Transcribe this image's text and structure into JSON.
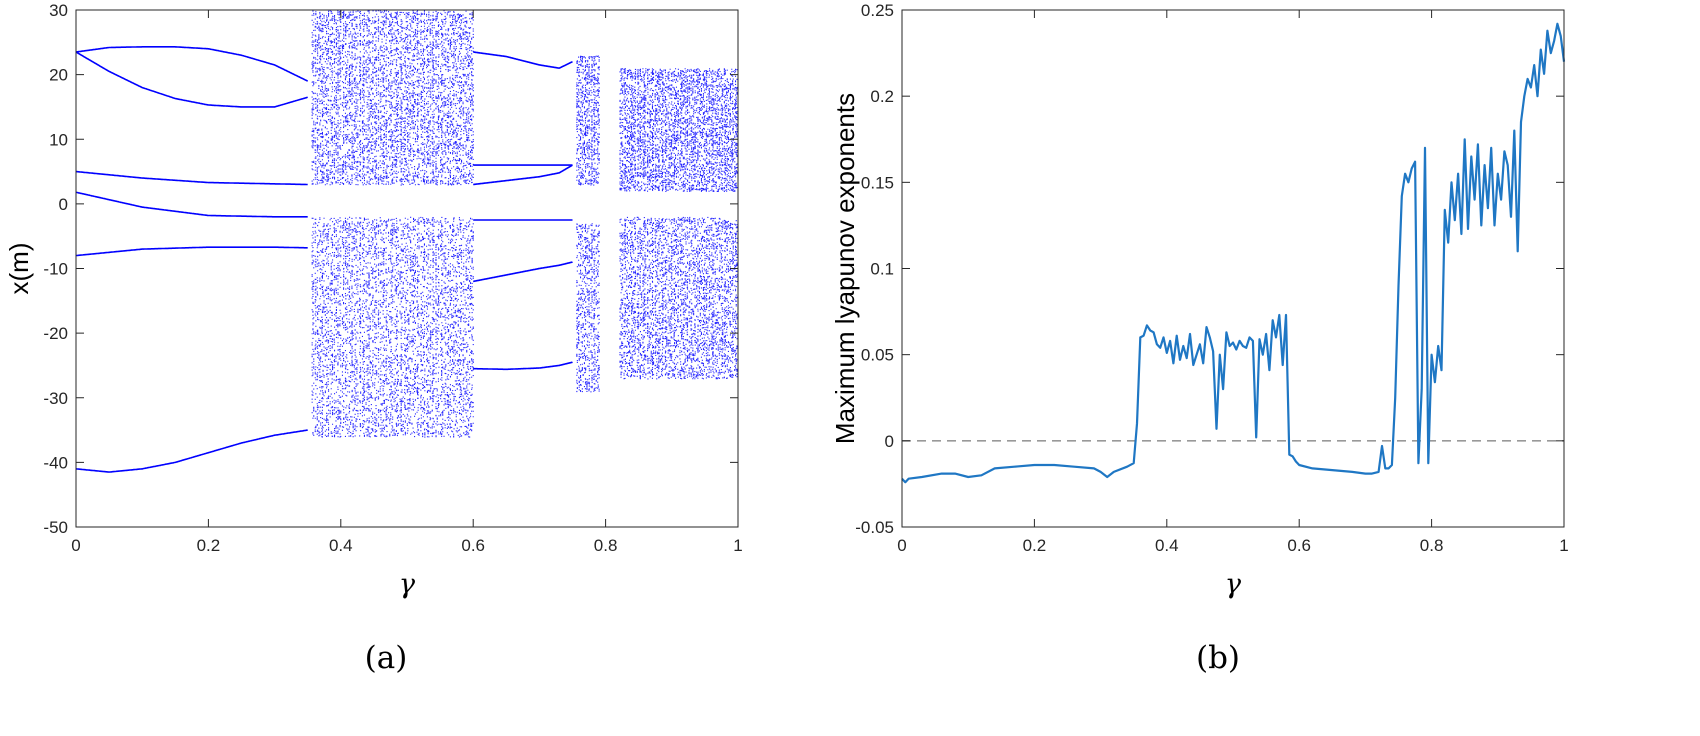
{
  "chart_data": [
    {
      "panel": "a",
      "caption": "(a)",
      "type": "scatter",
      "xlabel": "γ",
      "ylabel": "x(m)",
      "xlim": [
        0,
        1
      ],
      "ylim": [
        -50,
        30
      ],
      "xticks": [
        0,
        0.2,
        0.4,
        0.6,
        0.8,
        1
      ],
      "yticks": [
        -50,
        -40,
        -30,
        -20,
        -10,
        0,
        10,
        20,
        30
      ],
      "xticklabels": [
        "0",
        "0.2",
        "0.4",
        "0.6",
        "0.8",
        "1"
      ],
      "yticklabels": [
        "-50",
        "-40",
        "-30",
        "-20",
        "-10",
        "0",
        "10",
        "20",
        "30"
      ],
      "color": "#0000ff",
      "periodic_branches": [
        {
          "x": [
            0,
            0.05,
            0.1,
            0.15,
            0.2,
            0.25,
            0.3,
            0.35
          ],
          "y": [
            23.5,
            24.2,
            24.3,
            24.3,
            24.0,
            23.0,
            21.5,
            19.0
          ]
        },
        {
          "x": [
            0,
            0.05,
            0.1,
            0.15,
            0.2,
            0.25,
            0.3,
            0.35
          ],
          "y": [
            23.5,
            20.5,
            18.0,
            16.3,
            15.3,
            15.0,
            15.0,
            16.5
          ]
        },
        {
          "x": [
            0,
            0.1,
            0.2,
            0.3,
            0.35
          ],
          "y": [
            5.0,
            4.0,
            3.3,
            3.1,
            3.0
          ]
        },
        {
          "x": [
            0,
            0.1,
            0.2,
            0.3,
            0.35
          ],
          "y": [
            1.8,
            -0.5,
            -1.8,
            -2.0,
            -2.0
          ]
        },
        {
          "x": [
            0,
            0.1,
            0.2,
            0.3,
            0.35
          ],
          "y": [
            -8.0,
            -7.0,
            -6.7,
            -6.7,
            -6.8
          ]
        },
        {
          "x": [
            0,
            0.05,
            0.1,
            0.15,
            0.2,
            0.25,
            0.3,
            0.35
          ],
          "y": [
            -41.0,
            -41.5,
            -41.0,
            -40.0,
            -38.5,
            -37.0,
            -35.8,
            -35.0
          ]
        },
        {
          "x": [
            0.6,
            0.65,
            0.7,
            0.73,
            0.75
          ],
          "y": [
            23.5,
            22.8,
            21.5,
            21.0,
            22.0
          ]
        },
        {
          "x": [
            0.6,
            0.65,
            0.7,
            0.73,
            0.75
          ],
          "y": [
            3.0,
            3.6,
            4.2,
            4.8,
            6.0
          ]
        },
        {
          "x": [
            0.6,
            0.65,
            0.7,
            0.73,
            0.75
          ],
          "y": [
            6.0,
            6.0,
            6.0,
            6.0,
            6.0
          ]
        },
        {
          "x": [
            0.6,
            0.65,
            0.7,
            0.73,
            0.75
          ],
          "y": [
            -2.5,
            -2.5,
            -2.5,
            -2.5,
            -2.5
          ]
        },
        {
          "x": [
            0.6,
            0.65,
            0.7,
            0.73,
            0.75
          ],
          "y": [
            -12.0,
            -11.0,
            -10.0,
            -9.5,
            -9.0
          ]
        },
        {
          "x": [
            0.6,
            0.65,
            0.7,
            0.73,
            0.75
          ],
          "y": [
            -25.5,
            -25.6,
            -25.4,
            -25.0,
            -24.5
          ]
        }
      ],
      "chaotic_bands": [
        {
          "x": [
            0.355,
            0.6
          ],
          "y": [
            [
              -36,
              -2
            ],
            [
              3,
              30
            ]
          ]
        },
        {
          "x": [
            0.755,
            0.79
          ],
          "y": [
            [
              -29,
              -3
            ],
            [
              3,
              23
            ]
          ]
        },
        {
          "x": [
            0.82,
            1.0
          ],
          "y": [
            [
              -27,
              -2
            ],
            [
              2,
              21
            ]
          ]
        }
      ]
    },
    {
      "panel": "b",
      "caption": "(b)",
      "type": "line",
      "xlabel": "γ",
      "ylabel": "Maximum lyapunov exponents",
      "xlim": [
        0,
        1
      ],
      "ylim": [
        -0.05,
        0.25
      ],
      "xticks": [
        0,
        0.2,
        0.4,
        0.6,
        0.8,
        1
      ],
      "yticks": [
        -0.05,
        0,
        0.05,
        0.1,
        0.15,
        0.2,
        0.25
      ],
      "xticklabels": [
        "0",
        "0.2",
        "0.4",
        "0.6",
        "0.8",
        "1"
      ],
      "yticklabels": [
        "-0.05",
        "0",
        "0.05",
        "0.1",
        "0.15",
        "0.2",
        "0.25"
      ],
      "reference_line": {
        "y": 0,
        "style": "dashed",
        "color": "#999999"
      },
      "series": [
        {
          "color": "#1f77c4",
          "x": [
            0,
            0.005,
            0.01,
            0.03,
            0.06,
            0.08,
            0.1,
            0.12,
            0.14,
            0.17,
            0.2,
            0.23,
            0.26,
            0.29,
            0.3,
            0.31,
            0.32,
            0.34,
            0.35,
            0.355,
            0.36,
            0.365,
            0.37,
            0.375,
            0.38,
            0.385,
            0.39,
            0.395,
            0.4,
            0.405,
            0.41,
            0.415,
            0.42,
            0.425,
            0.43,
            0.435,
            0.44,
            0.445,
            0.45,
            0.455,
            0.46,
            0.465,
            0.47,
            0.475,
            0.48,
            0.485,
            0.49,
            0.495,
            0.5,
            0.505,
            0.51,
            0.515,
            0.52,
            0.525,
            0.53,
            0.535,
            0.54,
            0.545,
            0.55,
            0.555,
            0.56,
            0.565,
            0.57,
            0.575,
            0.58,
            0.585,
            0.59,
            0.595,
            0.6,
            0.62,
            0.65,
            0.68,
            0.7,
            0.71,
            0.72,
            0.725,
            0.73,
            0.735,
            0.74,
            0.745,
            0.75,
            0.755,
            0.76,
            0.765,
            0.77,
            0.775,
            0.78,
            0.785,
            0.79,
            0.795,
            0.8,
            0.805,
            0.81,
            0.815,
            0.82,
            0.825,
            0.83,
            0.835,
            0.84,
            0.845,
            0.85,
            0.855,
            0.86,
            0.865,
            0.87,
            0.875,
            0.88,
            0.885,
            0.89,
            0.895,
            0.9,
            0.905,
            0.91,
            0.915,
            0.92,
            0.925,
            0.93,
            0.935,
            0.94,
            0.945,
            0.95,
            0.955,
            0.96,
            0.965,
            0.97,
            0.975,
            0.98,
            0.985,
            0.99,
            0.995,
            1.0
          ],
          "y": [
            -0.022,
            -0.024,
            -0.022,
            -0.021,
            -0.019,
            -0.019,
            -0.021,
            -0.02,
            -0.016,
            -0.015,
            -0.014,
            -0.014,
            -0.015,
            -0.016,
            -0.018,
            -0.021,
            -0.018,
            -0.015,
            -0.013,
            0.01,
            0.06,
            0.061,
            0.067,
            0.064,
            0.063,
            0.056,
            0.054,
            0.06,
            0.051,
            0.058,
            0.045,
            0.061,
            0.047,
            0.055,
            0.048,
            0.062,
            0.044,
            0.05,
            0.056,
            0.045,
            0.066,
            0.06,
            0.052,
            0.007,
            0.05,
            0.03,
            0.063,
            0.055,
            0.057,
            0.053,
            0.058,
            0.055,
            0.054,
            0.06,
            0.058,
            0.002,
            0.059,
            0.05,
            0.062,
            0.041,
            0.07,
            0.06,
            0.073,
            0.044,
            0.073,
            -0.008,
            -0.009,
            -0.012,
            -0.014,
            -0.016,
            -0.017,
            -0.018,
            -0.019,
            -0.019,
            -0.018,
            -0.003,
            -0.016,
            -0.016,
            -0.014,
            0.025,
            0.09,
            0.142,
            0.155,
            0.15,
            0.158,
            0.162,
            -0.013,
            0.03,
            0.17,
            -0.013,
            0.05,
            0.034,
            0.055,
            0.041,
            0.134,
            0.115,
            0.15,
            0.128,
            0.155,
            0.12,
            0.175,
            0.123,
            0.165,
            0.14,
            0.172,
            0.125,
            0.16,
            0.135,
            0.17,
            0.125,
            0.155,
            0.14,
            0.168,
            0.16,
            0.13,
            0.18,
            0.11,
            0.185,
            0.2,
            0.21,
            0.205,
            0.218,
            0.2,
            0.227,
            0.213,
            0.238,
            0.225,
            0.232,
            0.242,
            0.235,
            0.22
          ]
        }
      ]
    }
  ]
}
